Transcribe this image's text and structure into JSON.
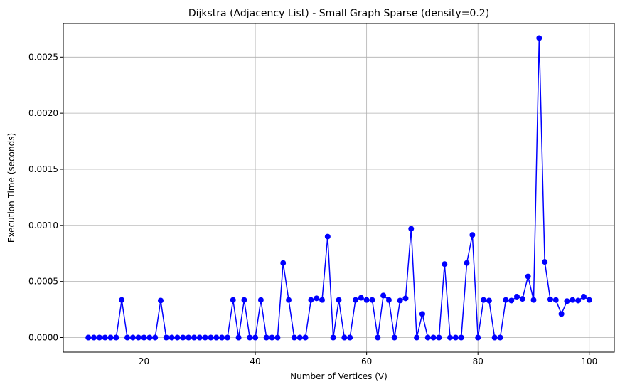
{
  "chart_data": {
    "type": "line",
    "title": "Dijkstra (Adjacency List) - Small Graph Sparse (density=0.2)",
    "xlabel": "Number of Vertices (V)",
    "ylabel": "Execution Time (seconds)",
    "xlim": [
      5.5,
      104.5
    ],
    "ylim": [
      -0.00013,
      0.0028
    ],
    "xticks": [
      20,
      40,
      60,
      80,
      100
    ],
    "yticks": [
      0.0,
      0.0005,
      0.001,
      0.0015,
      0.002,
      0.0025
    ],
    "xtick_labels": [
      "20",
      "40",
      "60",
      "80",
      "100"
    ],
    "ytick_labels": [
      "0.0000",
      "0.0005",
      "0.0010",
      "0.0015",
      "0.0020",
      "0.0025"
    ],
    "grid": true,
    "legend": false,
    "series": [
      {
        "color": "#0000ff",
        "marker": "circle",
        "x": [
          10,
          11,
          12,
          13,
          14,
          15,
          16,
          17,
          18,
          19,
          20,
          21,
          22,
          23,
          24,
          25,
          26,
          27,
          28,
          29,
          30,
          31,
          32,
          33,
          34,
          35,
          36,
          37,
          38,
          39,
          40,
          41,
          42,
          43,
          44,
          45,
          46,
          47,
          48,
          49,
          50,
          51,
          52,
          53,
          54,
          55,
          56,
          57,
          58,
          59,
          60,
          61,
          62,
          63,
          64,
          65,
          66,
          67,
          68,
          69,
          70,
          71,
          72,
          73,
          74,
          75,
          76,
          77,
          78,
          79,
          80,
          81,
          82,
          83,
          84,
          85,
          86,
          87,
          88,
          89,
          90,
          91,
          92,
          93,
          94,
          95,
          96,
          97,
          98,
          99,
          100
        ],
        "y": [
          0,
          0,
          0,
          0,
          0,
          0,
          0.000335,
          0,
          0,
          0,
          0,
          0,
          0,
          0.00033,
          0,
          0,
          0,
          0,
          0,
          0,
          0,
          0,
          0,
          0,
          0,
          0,
          0.000335,
          0,
          0.000335,
          0,
          0,
          0.000335,
          0,
          0,
          0,
          0.000665,
          0.000335,
          0,
          0,
          0,
          0.000335,
          0.00035,
          0.000335,
          0.0009,
          0,
          0.000335,
          0,
          0,
          0.000335,
          0.000355,
          0.000335,
          0.000335,
          0,
          0.000375,
          0.000335,
          0,
          0.00033,
          0.00035,
          0.00097,
          0,
          0.00021,
          0,
          0,
          0,
          0.000655,
          0,
          0,
          0,
          0.000665,
          0.000915,
          0,
          0.000335,
          0.00033,
          0,
          0,
          0.000335,
          0.00033,
          0.000365,
          0.000345,
          0.000545,
          0.000335,
          0.00267,
          0.000675,
          0.00034,
          0.000335,
          0.00021,
          0.000325,
          0.000335,
          0.00033,
          0.000365,
          0.000335
        ]
      }
    ]
  }
}
